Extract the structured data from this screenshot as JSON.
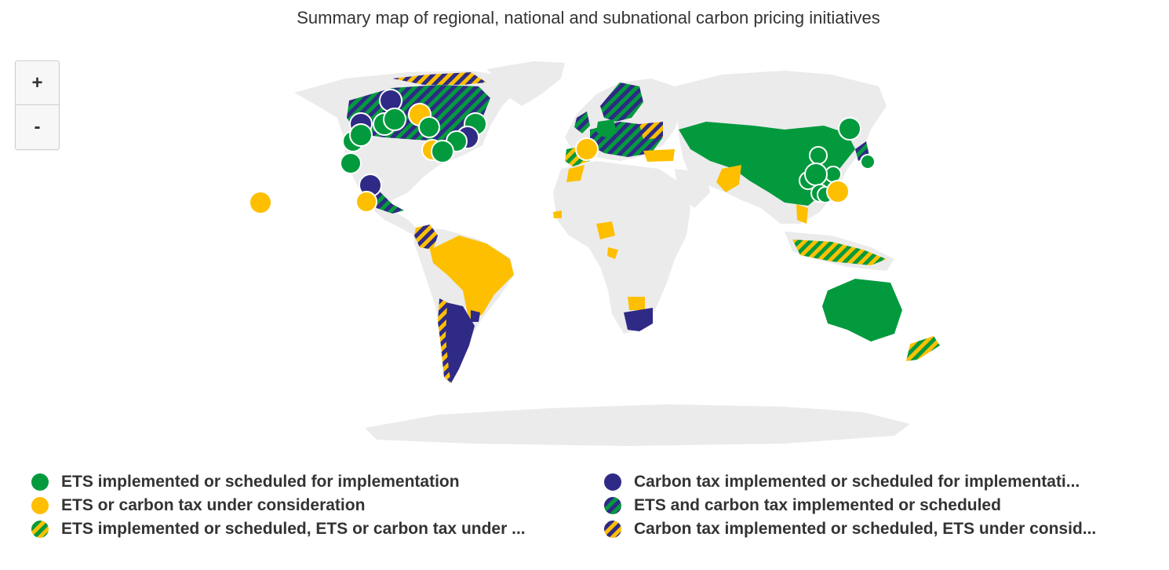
{
  "map": {
    "title": "Summary map of regional, national and subnational carbon pricing initiatives",
    "zoom_in_label": "+",
    "zoom_out_label": "-",
    "colors": {
      "ets": "#039a3e",
      "tax": "#2f2a85",
      "consideration": "#fdbf00",
      "land": "#ebebeb"
    },
    "legend": [
      {
        "label": "ETS implemented or scheduled for implementation",
        "swatch": "ets"
      },
      {
        "label": "Carbon tax implemented or scheduled for implementati...",
        "swatch": "tax"
      },
      {
        "label": "ETS or carbon tax under consideration",
        "swatch": "consideration"
      },
      {
        "label": "ETS and carbon tax implemented or scheduled",
        "swatch": "ets-tax"
      },
      {
        "label": "ETS implemented or scheduled, ETS or carbon tax under ...",
        "swatch": "ets-consideration"
      },
      {
        "label": "Carbon tax implemented or scheduled, ETS under consid...",
        "swatch": "tax-consideration"
      }
    ]
  }
}
